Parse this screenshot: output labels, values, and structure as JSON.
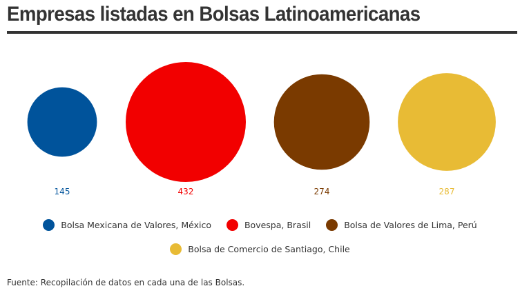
{
  "title": "Empresas listadas en Bolsas Latinoamericanas",
  "source": "Fuente: Recopilación de datos en cada una de las Bolsas.",
  "chart_data": {
    "type": "bubble",
    "title": "Empresas listadas en Bolsas Latinoamericanas",
    "legend_position": "bottom",
    "series": [
      {
        "name": "Bolsa Mexicana de Valores, México",
        "value": 145,
        "label": "145",
        "color": "#00539b"
      },
      {
        "name": "Bovespa, Brasil",
        "value": 432,
        "label": "432",
        "color": "#f20000"
      },
      {
        "name": "Bolsa de Valores de Lima, Perú",
        "value": 274,
        "label": "274",
        "color": "#7a3a00"
      },
      {
        "name": "Bolsa de Comercio de Santiago, Chile",
        "value": 287,
        "label": "287",
        "color": "#e8bb35"
      }
    ]
  }
}
